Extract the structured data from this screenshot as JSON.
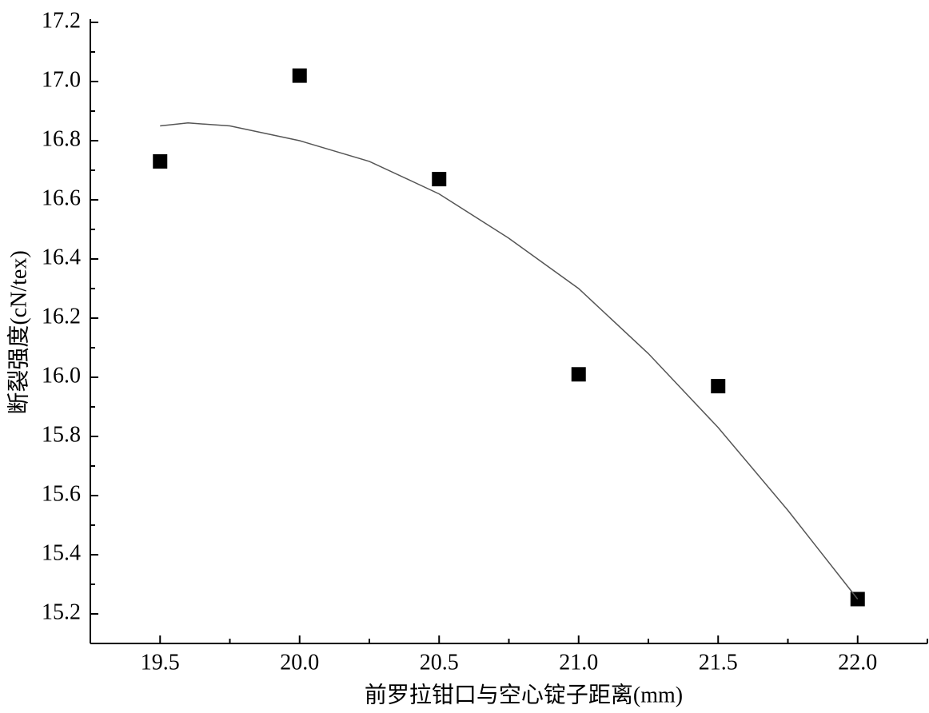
{
  "chart_data": {
    "type": "scatter",
    "xlabel": "前罗拉钳口与空心锭子距离(mm)",
    "ylabel": "断裂强度(cN/tex)",
    "xlim": [
      19.25,
      22.25
    ],
    "ylim": [
      15.1,
      17.2
    ],
    "xticks": [
      19.5,
      {
        "value": 20,
        "label": "20.0"
      },
      20.5,
      {
        "value": 21,
        "label": "21.0"
      },
      21.5,
      {
        "value": 22,
        "label": "22.0"
      }
    ],
    "xticks_minor": [
      19.25,
      19.75,
      20.25,
      20.75,
      21.25,
      21.75,
      22.25
    ],
    "yticks": [
      15.2,
      15.4,
      15.6,
      15.8,
      {
        "value": 16,
        "label": "16.0"
      },
      16.2,
      16.4,
      16.6,
      16.8,
      {
        "value": 17,
        "label": "17.0"
      },
      17.2
    ],
    "yticks_minor": [
      15.1,
      15.3,
      15.5,
      15.7,
      15.9,
      16.1,
      16.3,
      16.5,
      16.7,
      16.9,
      17.1
    ],
    "series": [
      {
        "type": "scatter",
        "color": "#000000",
        "x": [
          19.5,
          20.0,
          20.5,
          21.0,
          21.5,
          22.0
        ],
        "values": [
          16.73,
          17.02,
          16.67,
          16.01,
          15.97,
          15.25
        ]
      },
      {
        "type": "line",
        "color": "#555555",
        "x": [
          19.5,
          19.6,
          19.75,
          20.0,
          20.25,
          20.5,
          20.75,
          21.0,
          21.25,
          21.5,
          21.75,
          22.0
        ],
        "values": [
          16.85,
          16.86,
          16.85,
          16.8,
          16.73,
          16.62,
          16.47,
          16.3,
          16.08,
          15.83,
          15.55,
          15.25
        ]
      }
    ]
  }
}
